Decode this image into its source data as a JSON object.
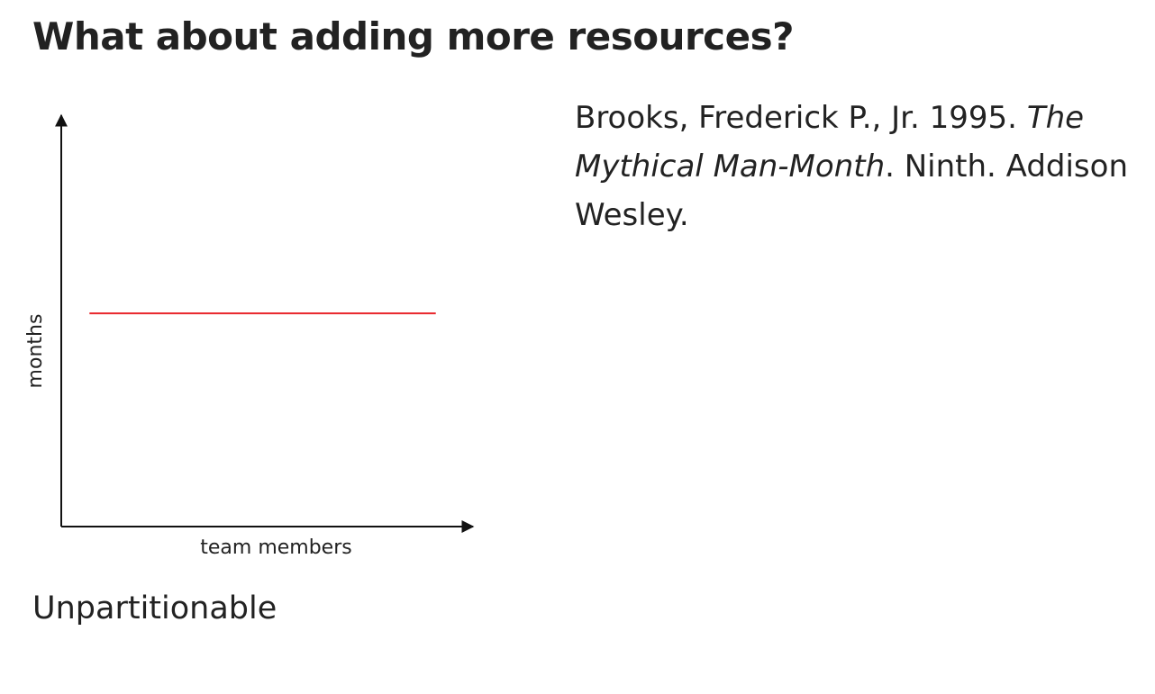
{
  "slide": {
    "title": "What about adding more resources?",
    "caption": "Unpartitionable"
  },
  "citation": {
    "lead": "Brooks, Frederick P., Jr. 1995.",
    "title": "The Mythical Man-Month",
    "tail": ". Ninth. Addison Wesley."
  },
  "chart_data": {
    "type": "line",
    "xlabel": "team members",
    "ylabel": "months",
    "xlim": [
      0,
      1
    ],
    "ylim": [
      0,
      1
    ],
    "grid": false,
    "axis_arrows": true,
    "ticks": false,
    "series": [
      {
        "color": "#e8262b",
        "x": [
          0.07,
          0.93
        ],
        "y": [
          0.53,
          0.53
        ]
      }
    ]
  }
}
